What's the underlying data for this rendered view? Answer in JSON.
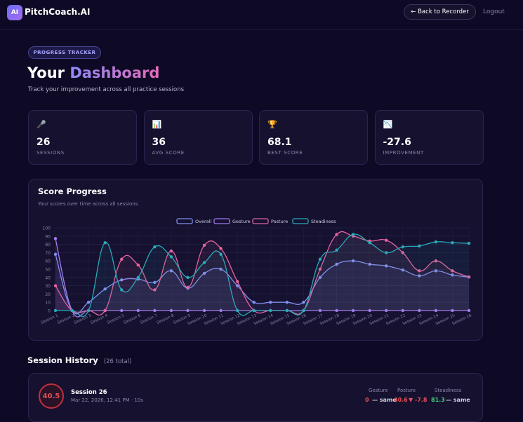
{
  "header": {
    "logo": "AI",
    "brand": "PitchCoach.AI",
    "back_button": "← Back to Recorder",
    "logout": "Logout"
  },
  "hero": {
    "badge": "PROGRESS TRACKER",
    "title_prefix": "Your",
    "title_highlight": "Dashboard",
    "subtitle": "Track your improvement across all practice sessions"
  },
  "stats": [
    {
      "icon": "🎤",
      "value": 26,
      "label": "SESSIONS"
    },
    {
      "icon": "📊",
      "value": 36,
      "label": "AVG SCORE"
    },
    {
      "icon": "🏆",
      "value": 68.1,
      "label": "BEST SCORE"
    },
    {
      "icon": "📉",
      "value": -27.6,
      "label": "IMPROVEMENT"
    }
  ],
  "chart_data": {
    "type": "line",
    "title": "Score Progress",
    "subtitle": "Your scores over time across all sessions",
    "categories": [
      "Session 1",
      "Session 2",
      "Session 3",
      "Session 4",
      "Session 5",
      "Session 6",
      "Session 7",
      "Session 8",
      "Session 9",
      "Session 10",
      "Session 11",
      "Session 12",
      "Session 13",
      "Session 14",
      "Session 15",
      "Session 16",
      "Session 17",
      "Session 18",
      "Session 19",
      "Session 20",
      "Session 21",
      "Session 22",
      "Session 23",
      "Session 24",
      "Session 25",
      "Session 26"
    ],
    "series": [
      {
        "name": "Overall",
        "color": "#8190f0",
        "values": [
          68,
          0,
          10,
          26,
          37,
          38,
          34,
          48,
          27,
          45,
          50,
          30,
          10,
          10,
          10,
          10,
          40,
          56,
          60,
          56,
          54,
          49,
          42,
          48,
          43,
          40.5
        ]
      },
      {
        "name": "Gesture",
        "color": "#a27bf0",
        "values": [
          87,
          0,
          0,
          0,
          0,
          0,
          0,
          0,
          0,
          0,
          0,
          0,
          0,
          0,
          0,
          0,
          0,
          0,
          0,
          0,
          0,
          0,
          0,
          0,
          0,
          0
        ]
      },
      {
        "name": "Posture",
        "color": "#e4649f",
        "values": [
          30,
          0,
          0,
          0,
          62,
          55,
          25,
          72,
          28,
          79,
          75,
          35,
          0,
          0,
          0,
          0,
          50,
          92,
          90,
          84,
          85,
          70,
          48,
          60,
          48,
          40.6
        ]
      },
      {
        "name": "Steadiness",
        "color": "#2aa9b8",
        "values": [
          0,
          0,
          0,
          82,
          25,
          40,
          77,
          65,
          40,
          58,
          68,
          0,
          0,
          0,
          0,
          0,
          62,
          73,
          92,
          82,
          70,
          77,
          78,
          83,
          82,
          81.3
        ]
      }
    ],
    "ylim": [
      0,
      100
    ],
    "yticks": [
      0,
      10,
      20,
      30,
      40,
      50,
      60,
      70,
      80,
      90,
      100
    ],
    "grid": true,
    "legend": "top"
  },
  "history": {
    "title": "Session History",
    "count": "(26 total)",
    "sessions": [
      {
        "name": "Session 26",
        "date": "Mar 22, 2026, 12:41 PM · 10s",
        "score": "40.5",
        "metrics": [
          {
            "label": "Gesture",
            "value": "0",
            "change": "— same",
            "color": "#e0505a",
            "change_color": "#cfcfe0"
          },
          {
            "label": "Posture",
            "value": "40.6",
            "change": "▼ -7.8",
            "color": "#e0505a",
            "change_color": "#e0505a"
          },
          {
            "label": "Steadiness",
            "value": "81.3",
            "change": "— same",
            "color": "#3fcf7a",
            "change_color": "#cfcfe0"
          }
        ]
      }
    ]
  }
}
